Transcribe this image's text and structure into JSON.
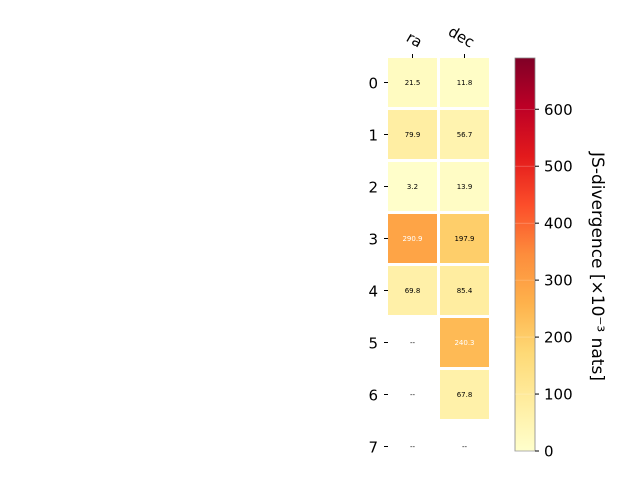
{
  "chart_data": {
    "type": "heatmap",
    "title": "",
    "columns": [
      "ra",
      "dec"
    ],
    "rows": [
      "0",
      "1",
      "2",
      "3",
      "4",
      "5",
      "6",
      "7"
    ],
    "values": [
      [
        21.5,
        11.8
      ],
      [
        79.9,
        56.7
      ],
      [
        3.2,
        13.9
      ],
      [
        290.9,
        197.9
      ],
      [
        69.8,
        85.4
      ],
      [
        null,
        240.3
      ],
      [
        null,
        67.8
      ],
      [
        null,
        null
      ]
    ],
    "cell_labels": [
      [
        "21.5",
        "11.8"
      ],
      [
        "79.9",
        "56.7"
      ],
      [
        "3.2",
        "13.9"
      ],
      [
        "290.9",
        "197.9"
      ],
      [
        "69.8",
        "85.4"
      ],
      [
        "--",
        "240.3"
      ],
      [
        "--",
        "67.8"
      ],
      [
        "--",
        "--"
      ]
    ],
    "colorbar": {
      "label": "JS-divergence [×10⁻³ nats]",
      "range": [
        0,
        690
      ],
      "ticks": [
        0,
        100,
        200,
        300,
        400,
        500,
        600
      ],
      "tick_labels": [
        "0",
        "100",
        "200",
        "300",
        "400",
        "500",
        "600"
      ],
      "colormap": "YlOrRd",
      "colormap_stops": [
        "#ffffcc",
        "#ffeda0",
        "#fed976",
        "#feb24c",
        "#fd8d3c",
        "#fc4e2a",
        "#e31a1c",
        "#bd0026",
        "#800026"
      ]
    },
    "grid": false
  }
}
